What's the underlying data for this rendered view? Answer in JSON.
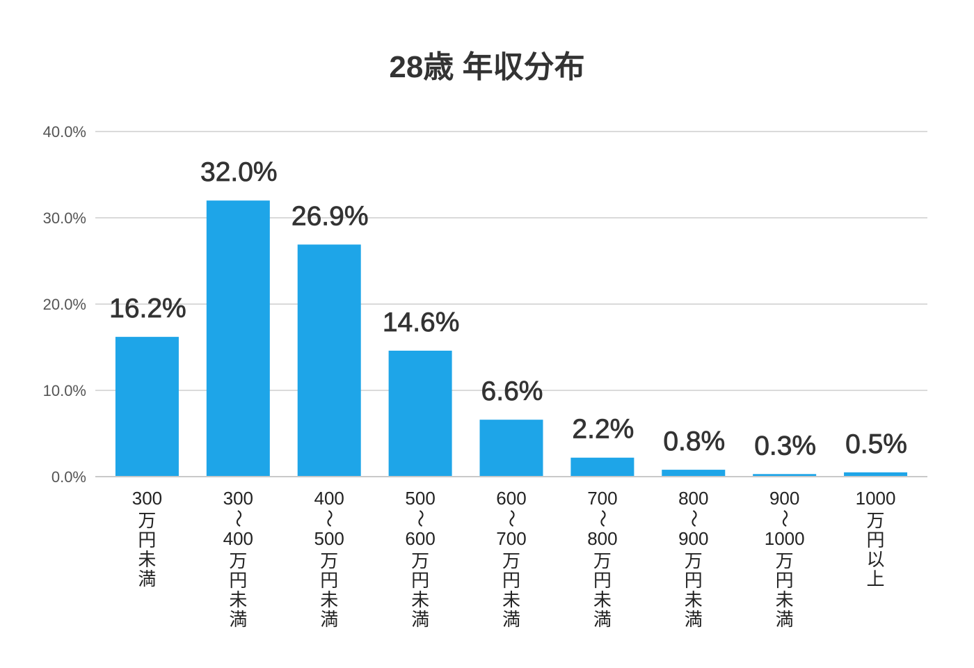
{
  "chart_data": {
    "type": "bar",
    "title": "28歳 年収分布",
    "categories": [
      "300万円未満",
      "300〜400万円未満",
      "400〜500万円未満",
      "500〜600万円未満",
      "600〜700万円未満",
      "700〜800万円未満",
      "800〜900万円未満",
      "900〜1000万円未満",
      "1000万円以上"
    ],
    "values": [
      16.2,
      32.0,
      26.9,
      14.6,
      6.6,
      2.2,
      0.8,
      0.3,
      0.5
    ],
    "value_labels": [
      "16.2%",
      "32.0%",
      "26.9%",
      "14.6%",
      "6.6%",
      "2.2%",
      "0.8%",
      "0.3%",
      "0.5%"
    ],
    "ylim": [
      0,
      40
    ],
    "yticks": [
      0,
      10,
      20,
      30,
      40
    ],
    "ytick_labels": [
      "0.0%",
      "10.0%",
      "20.0%",
      "30.0%",
      "40.0%"
    ],
    "grid": true,
    "colors": {
      "bar": "#1ea5e8"
    }
  }
}
